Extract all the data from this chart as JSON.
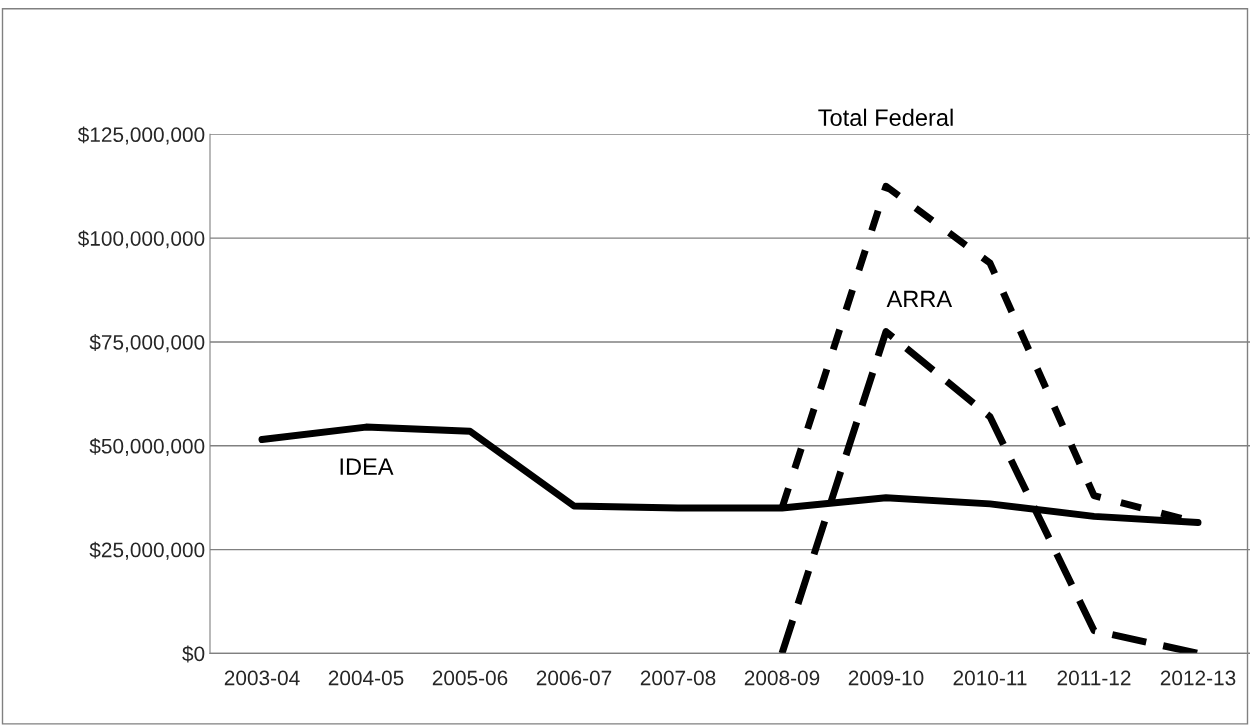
{
  "chart_data": {
    "type": "line",
    "categories": [
      "2003-04",
      "2004-05",
      "2005-06",
      "2006-07",
      "2007-08",
      "2008-09",
      "2009-10",
      "2010-11",
      "2011-12",
      "2012-13"
    ],
    "series": [
      {
        "name": "IDEA",
        "color": "#000000",
        "line_style": "solid",
        "values": [
          51500000,
          54500000,
          53500000,
          35500000,
          35000000,
          35000000,
          37500000,
          36000000,
          33000000,
          31500000
        ]
      },
      {
        "name": "Total Federal",
        "color": "#000000",
        "line_style": "dashed",
        "values": [
          null,
          null,
          null,
          null,
          null,
          35000000,
          112500000,
          94000000,
          38000000,
          31500000
        ]
      },
      {
        "name": "ARRA",
        "color": "#000000",
        "line_style": "dashed",
        "values": [
          null,
          null,
          null,
          null,
          null,
          0,
          77500000,
          57000000,
          5500000,
          0
        ]
      }
    ],
    "ylim": [
      0,
      125000000
    ],
    "yticks": [
      {
        "value": 0,
        "label": "$0"
      },
      {
        "value": 25000000,
        "label": "$25,000,000"
      },
      {
        "value": 50000000,
        "label": "$50,000,000"
      },
      {
        "value": 75000000,
        "label": "$75,000,000"
      },
      {
        "value": 100000000,
        "label": "$100,000,000"
      },
      {
        "value": 125000000,
        "label": "$125,000,000"
      }
    ],
    "grid": "y",
    "legend": false,
    "marker": "none"
  }
}
